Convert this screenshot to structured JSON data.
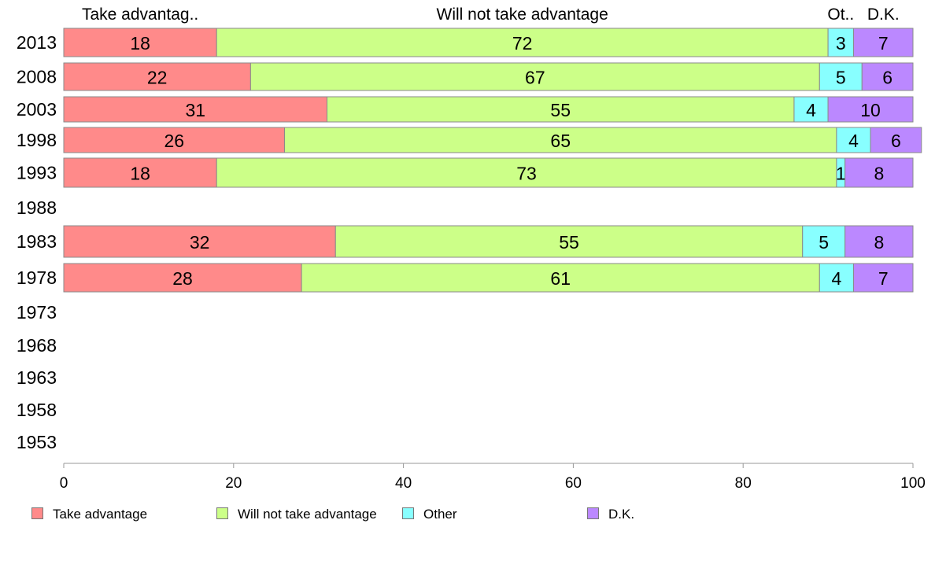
{
  "chart_data": {
    "type": "bar",
    "orientation": "horizontal",
    "stacked": true,
    "categories": [
      "2013",
      "2008",
      "2003",
      "1998",
      "1993",
      "1988",
      "1983",
      "1978",
      "1973",
      "1968",
      "1963",
      "1958",
      "1953"
    ],
    "series": [
      {
        "name": "Take advantage",
        "header": "Take advantag..",
        "color": "#ff8a8a",
        "values": [
          18,
          22,
          31,
          26,
          18,
          null,
          32,
          28,
          null,
          null,
          null,
          null,
          null
        ]
      },
      {
        "name": "Will not take advantage",
        "header": "Will not take advantage",
        "color": "#ccff88",
        "values": [
          72,
          67,
          55,
          65,
          73,
          null,
          55,
          61,
          null,
          null,
          null,
          null,
          null
        ]
      },
      {
        "name": "Other",
        "header": "Ot..",
        "color": "#88ffff",
        "values": [
          3,
          5,
          4,
          4,
          1,
          null,
          5,
          4,
          null,
          null,
          null,
          null,
          null
        ]
      },
      {
        "name": "D.K.",
        "header": "D.K.",
        "color": "#bb88ff",
        "values": [
          7,
          6,
          10,
          6,
          8,
          null,
          8,
          7,
          null,
          null,
          null,
          null,
          null
        ]
      }
    ],
    "xlim": [
      0,
      100
    ],
    "xticks": [
      0,
      20,
      40,
      60,
      80,
      100
    ],
    "grid": false,
    "legend_position": "bottom"
  }
}
